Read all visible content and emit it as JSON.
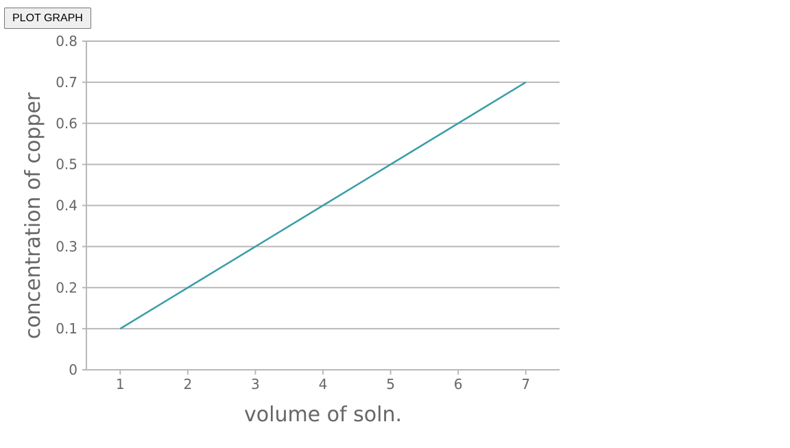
{
  "toolbar": {
    "plot_button_label": "PLOT GRAPH"
  },
  "chart_data": {
    "type": "line",
    "x": [
      1,
      2,
      3,
      4,
      5,
      6,
      7
    ],
    "series": [
      {
        "values": [
          0.1,
          0.2,
          0.3,
          0.4,
          0.5,
          0.6,
          0.7
        ]
      }
    ],
    "xlabel": "volume of soln.",
    "ylabel": "concentration of copper",
    "xticks": [
      "1",
      "2",
      "3",
      "4",
      "5",
      "6",
      "7"
    ],
    "yticks": [
      "0",
      "0.1",
      "0.2",
      "0.3",
      "0.4",
      "0.5",
      "0.6",
      "0.7",
      "0.8"
    ],
    "xlim": [
      0.5,
      7.5
    ],
    "ylim": [
      0,
      0.8
    ],
    "grid": "horizontal",
    "line_color": "#3a9da8",
    "grid_color": "#b8b8b8",
    "text_color": "#666666"
  }
}
